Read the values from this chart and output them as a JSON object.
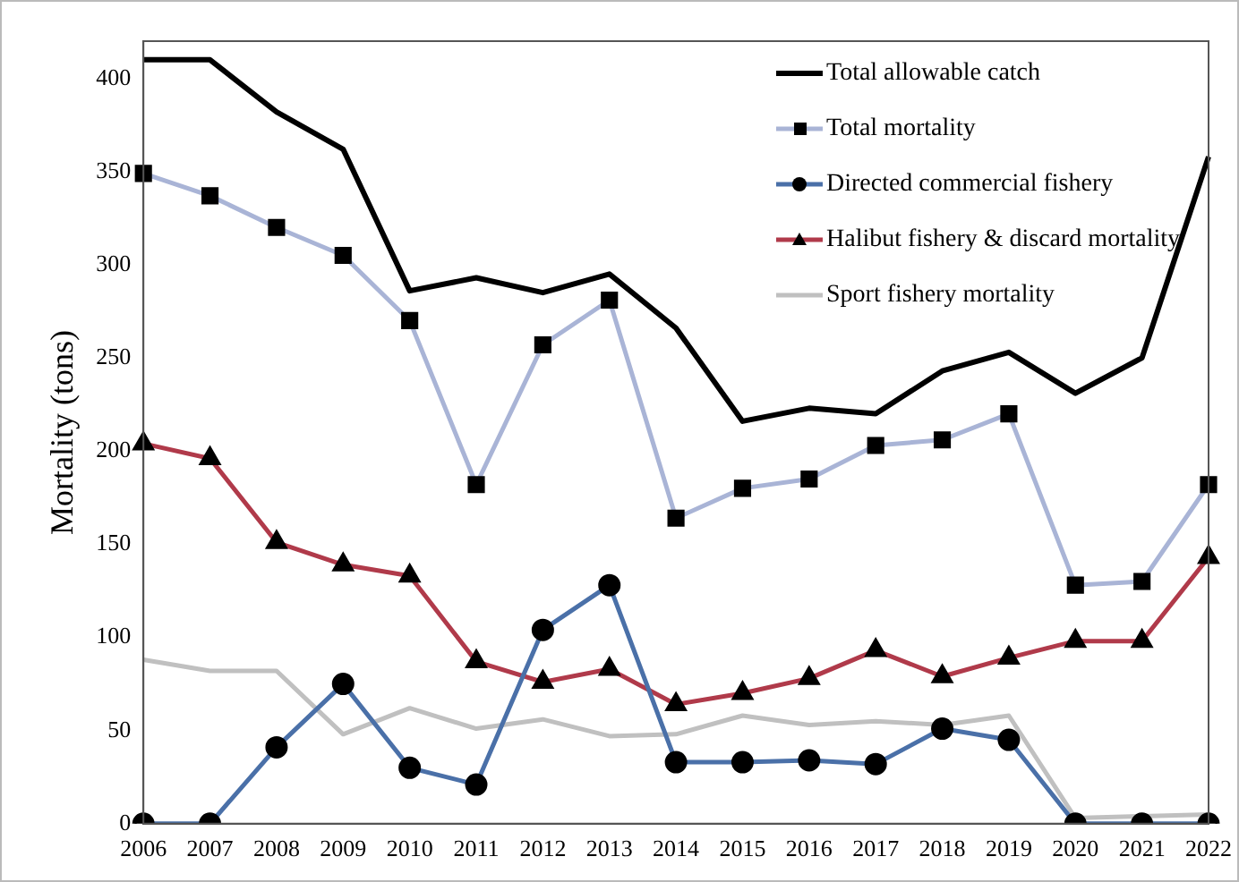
{
  "chart_data": {
    "type": "line",
    "ylabel": "Mortality (tons)",
    "categories": [
      "2006",
      "2007",
      "2008",
      "2009",
      "2010",
      "2011",
      "2012",
      "2013",
      "2014",
      "2015",
      "2016",
      "2017",
      "2018",
      "2019",
      "2020",
      "2021",
      "2022"
    ],
    "ylim": [
      0,
      420
    ],
    "yticks": [
      0,
      50,
      100,
      150,
      200,
      250,
      300,
      350,
      400
    ],
    "grid": false,
    "legend": "top right",
    "line_style": "solid",
    "series": [
      {
        "name": "Total allowable catch",
        "color": "#000000",
        "marker": "none",
        "values": [
          410,
          410,
          382,
          362,
          286,
          293,
          285,
          295,
          266,
          216,
          223,
          220,
          243,
          253,
          231,
          250,
          358
        ]
      },
      {
        "name": "Total mortality",
        "color": "#a9b4d6",
        "marker": "square",
        "values": [
          349,
          337,
          320,
          305,
          270,
          182,
          257,
          281,
          164,
          180,
          185,
          203,
          206,
          220,
          128,
          130,
          182
        ]
      },
      {
        "name": "Directed commercial fishery",
        "color": "#4a70a8",
        "marker": "circle",
        "values": [
          0,
          0,
          41,
          75,
          30,
          21,
          104,
          128,
          33,
          33,
          34,
          32,
          51,
          45,
          0,
          0,
          0
        ]
      },
      {
        "name": "Halibut fishery & discard mortality",
        "color": "#b03a4a",
        "marker": "triangle",
        "values": [
          204,
          196,
          151,
          139,
          133,
          87,
          76,
          83,
          64,
          70,
          78,
          93,
          79,
          89,
          98,
          98,
          143
        ]
      },
      {
        "name": "Sport fishery mortality",
        "color": "#c0c0c0",
        "marker": "none",
        "values": [
          88,
          82,
          82,
          48,
          62,
          51,
          56,
          47,
          48,
          58,
          53,
          55,
          53,
          58,
          3,
          4,
          5
        ]
      }
    ]
  }
}
